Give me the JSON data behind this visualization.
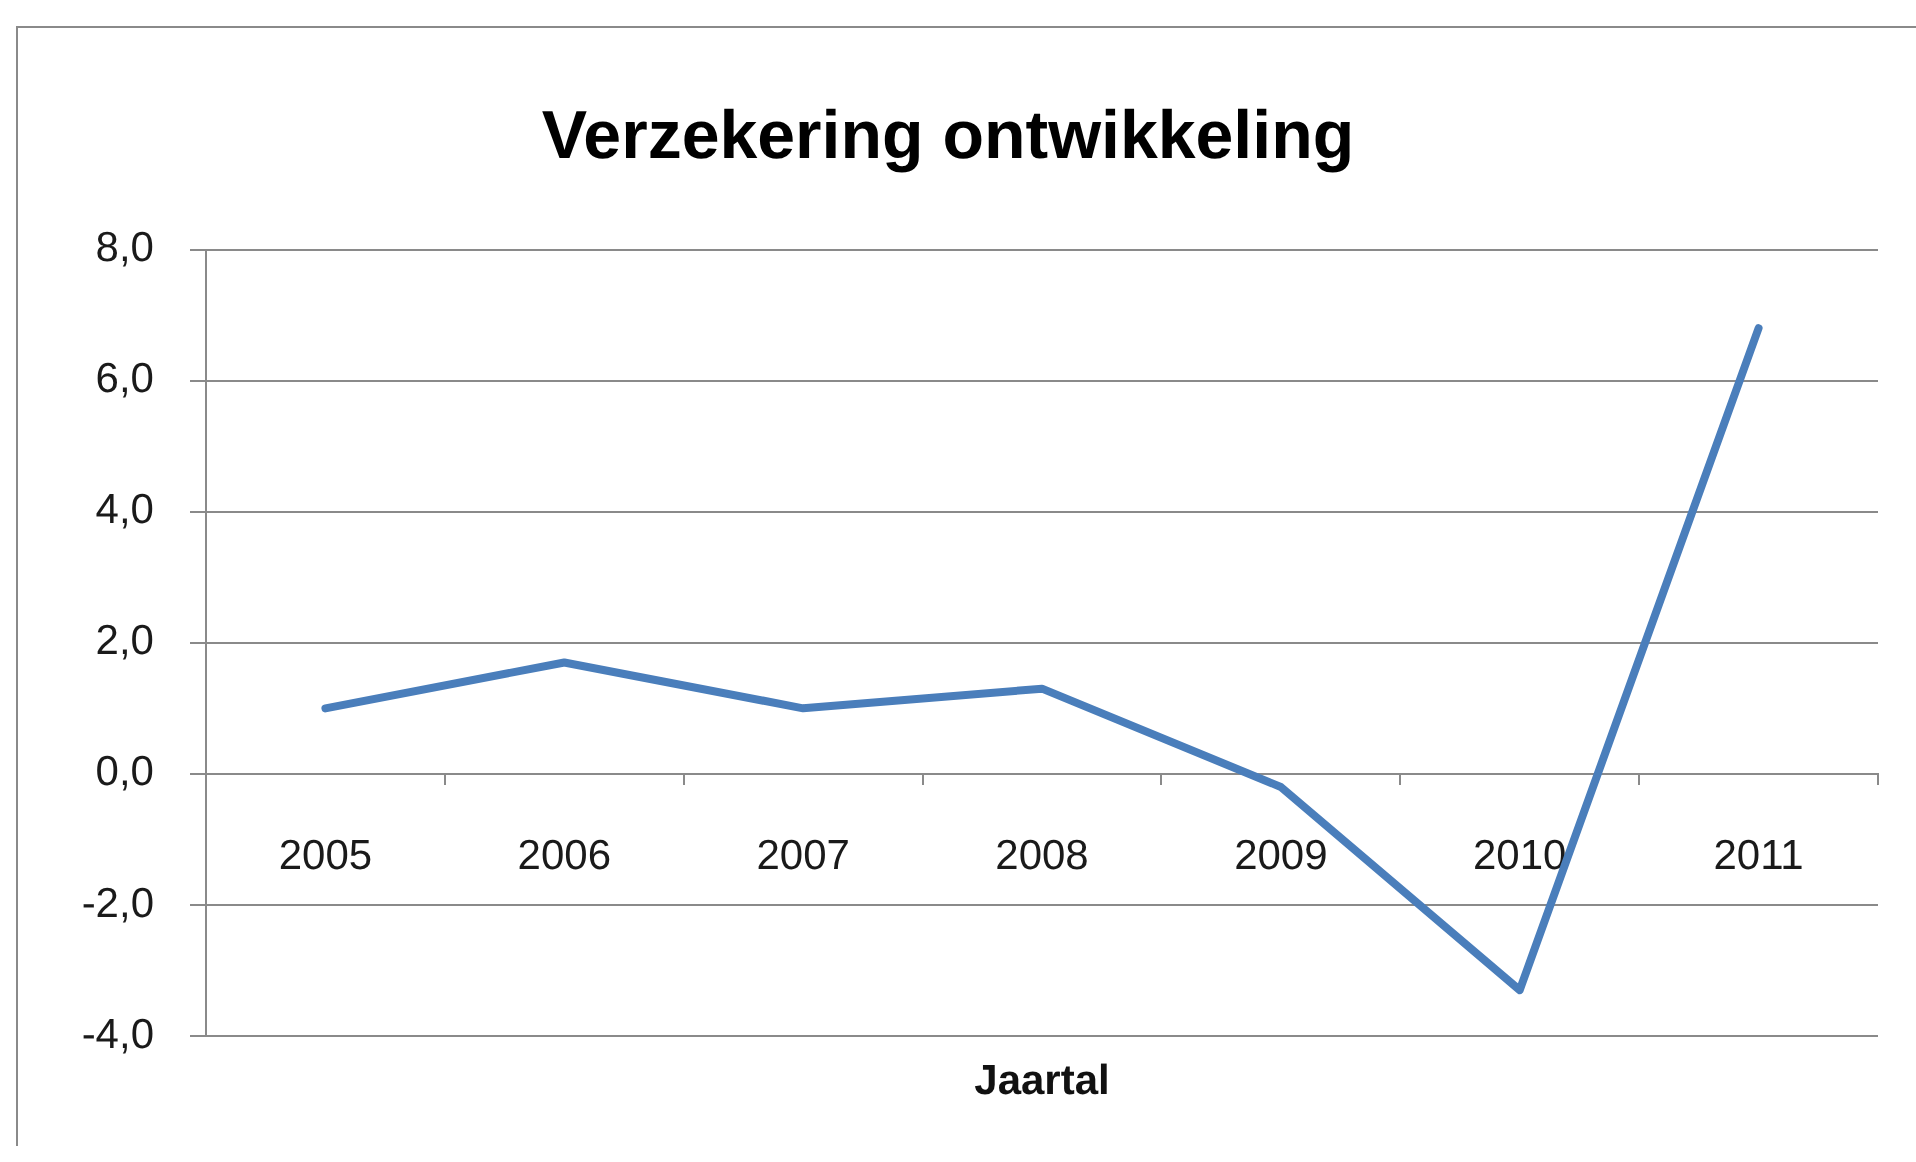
{
  "chart_data": {
    "type": "line",
    "title": "Verzekering ontwikkeling",
    "xlabel": "Jaartal",
    "categories": [
      "2005",
      "2006",
      "2007",
      "2008",
      "2009",
      "2010",
      "2011"
    ],
    "series": [
      {
        "color": "#4a7ebb",
        "values": [
          1,
          1.7,
          1,
          1.3,
          -0.2,
          -3.3,
          6.8
        ]
      }
    ],
    "ylim": [
      -4,
      8
    ],
    "yticks": [
      {
        "value": -4,
        "label": "-4,0"
      },
      {
        "value": -2,
        "label": "-2,0"
      },
      {
        "value": 0,
        "label": "0,0"
      },
      {
        "value": 2,
        "label": "2,0"
      },
      {
        "value": 4,
        "label": "4,0"
      },
      {
        "value": 6,
        "label": "6,0"
      },
      {
        "value": 8,
        "label": "8,0"
      }
    ],
    "grid": "y",
    "legend": false,
    "marker": "none",
    "line_style": "solid"
  }
}
